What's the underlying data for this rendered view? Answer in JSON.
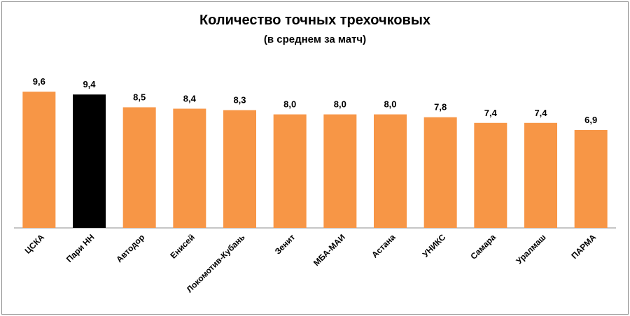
{
  "chart_data": {
    "type": "bar",
    "title": "Количество точных трехочковых",
    "subtitle": "(в среднем за матч)",
    "categories": [
      "ЦСКА",
      "Пари НН",
      "Автодор",
      "Енисей",
      "Локомотив-Кубань",
      "Зенит",
      "МБА-МАИ",
      "Астана",
      "УНИКС",
      "Самара",
      "Уралмаш",
      "ПАРМА"
    ],
    "values": [
      9.6,
      9.4,
      8.5,
      8.4,
      8.3,
      8.0,
      8.0,
      8.0,
      7.8,
      7.4,
      7.4,
      6.9
    ],
    "value_labels": [
      "9,6",
      "9,4",
      "8,5",
      "8,4",
      "8,3",
      "8,0",
      "8,0",
      "8,0",
      "7,8",
      "7,4",
      "7,4",
      "6,9"
    ],
    "xlabel": "",
    "ylabel": "",
    "ylim": [
      0,
      10
    ],
    "grid": false,
    "bar_color": "#f79646",
    "highlight_color": "#000000",
    "highlight_category": "Пари НН"
  }
}
